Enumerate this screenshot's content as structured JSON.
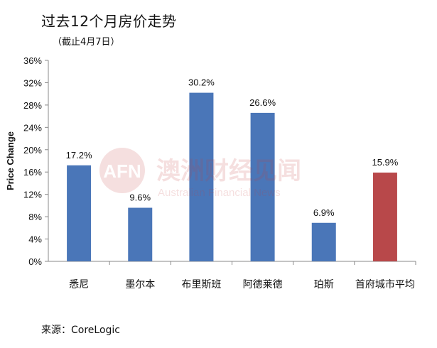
{
  "title": "过去12个月房价走势",
  "subtitle": "（截止4月7日）",
  "source": "来源：CoreLogic",
  "watermark": {
    "logo_text": "AFN",
    "cn_name": "澳洲财经见闻",
    "en_name": "Australian Financial News"
  },
  "chart_data": {
    "type": "bar",
    "ylabel": "Price Change",
    "ylim": [
      0,
      36
    ],
    "yticks": [
      "0%",
      "4%",
      "8%",
      "12%",
      "16%",
      "20%",
      "24%",
      "28%",
      "32%",
      "36%"
    ],
    "categories": [
      "悉尼",
      "墨尔本",
      "布里斯班",
      "阿德莱德",
      "珀斯",
      "首府城市平均"
    ],
    "values": [
      17.2,
      9.6,
      30.2,
      26.6,
      6.9,
      15.9
    ],
    "data_labels": [
      "17.2%",
      "9.6%",
      "30.2%",
      "26.6%",
      "6.9%",
      "15.9%"
    ],
    "colors": [
      "#4a76b8",
      "#4a76b8",
      "#4a76b8",
      "#4a76b8",
      "#4a76b8",
      "#b8484a"
    ]
  }
}
